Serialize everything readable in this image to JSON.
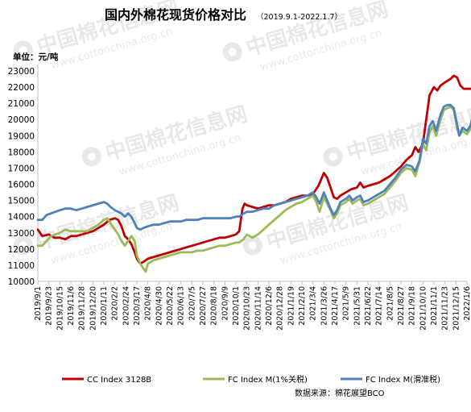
{
  "chart_data": {
    "type": "line",
    "title": "国内外棉花现货价格对比",
    "subtitle": "（2019.9.1-2022.1.7）",
    "unit_label": "单位：元/吨",
    "source": "数据来源：棉花展望BCO",
    "watermark": {
      "text": "中国棉花信息网",
      "url": "www.cottonchina.org.cn"
    },
    "ylim": [
      10000,
      23000
    ],
    "y_ticks": [
      "10000",
      "11000",
      "12000",
      "13000",
      "14000",
      "15000",
      "16000",
      "17000",
      "18000",
      "19000",
      "20000",
      "21000",
      "22000",
      "23000"
    ],
    "x_ticks": [
      "2019/9/1",
      "2019/9/23",
      "2019/10/15",
      "2019/11/6",
      "2019/11/28",
      "2019/12/20",
      "2020/1/11",
      "2020/2/2",
      "2020/2/24",
      "2020/3/17",
      "2020/4/8",
      "2020/4/30",
      "2020/5/22",
      "2020/6/13",
      "2020/7/5",
      "2020/7/27",
      "2020/8/18",
      "2020/9/9",
      "2020/10/1",
      "2020/10/23",
      "2020/11/14",
      "2020/12/6",
      "2020/12/28",
      "2021/1/19",
      "2021/2/10",
      "2021/3/4",
      "2021/3/26",
      "2021/4/17",
      "2021/5/9",
      "2021/5/31",
      "2021/6/22",
      "2021/7/14",
      "2021/8/5",
      "2021/8/27",
      "2021/9/18",
      "2021/10/10",
      "2021/11/1",
      "2021/11/23",
      "2021/12/15",
      "2022/1/6"
    ],
    "grid": false,
    "legend_position": "bottom",
    "series": [
      {
        "name": "CC Index 3128B",
        "color": "#c00000",
        "points": [
          [
            0,
            13200
          ],
          [
            0.4,
            12800
          ],
          [
            1,
            12900
          ],
          [
            1.5,
            12700
          ],
          [
            2,
            12700
          ],
          [
            2.5,
            12600
          ],
          [
            3,
            12800
          ],
          [
            3.5,
            12800
          ],
          [
            4,
            12900
          ],
          [
            4.5,
            13000
          ],
          [
            5,
            13100
          ],
          [
            5.5,
            13300
          ],
          [
            6,
            13500
          ],
          [
            6.5,
            13800
          ],
          [
            7,
            13900
          ],
          [
            7.3,
            13800
          ],
          [
            7.6,
            13400
          ],
          [
            7.9,
            12800
          ],
          [
            8.2,
            12600
          ],
          [
            8.5,
            12300
          ],
          [
            8.8,
            11800
          ],
          [
            9.0,
            11400
          ],
          [
            9.3,
            11100
          ],
          [
            9.6,
            11200
          ],
          [
            10,
            11400
          ],
          [
            10.5,
            11500
          ],
          [
            11,
            11600
          ],
          [
            11.5,
            11700
          ],
          [
            12,
            11800
          ],
          [
            12.5,
            11900
          ],
          [
            13,
            12000
          ],
          [
            13.5,
            12100
          ],
          [
            14,
            12200
          ],
          [
            14.5,
            12300
          ],
          [
            15,
            12400
          ],
          [
            15.5,
            12500
          ],
          [
            16,
            12600
          ],
          [
            16.5,
            12700
          ],
          [
            17,
            12700
          ],
          [
            17.5,
            12800
          ],
          [
            18,
            12900
          ],
          [
            18.3,
            13100
          ],
          [
            18.6,
            14500
          ],
          [
            18.8,
            14800
          ],
          [
            19,
            14700
          ],
          [
            19.5,
            14600
          ],
          [
            20,
            14500
          ],
          [
            20.5,
            14600
          ],
          [
            21,
            14700
          ],
          [
            21.5,
            14700
          ],
          [
            22,
            14800
          ],
          [
            22.5,
            14900
          ],
          [
            23,
            15100
          ],
          [
            23.5,
            15200
          ],
          [
            24,
            15300
          ],
          [
            24.5,
            15300
          ],
          [
            25,
            15400
          ],
          [
            25.5,
            15900
          ],
          [
            26,
            16700
          ],
          [
            26.3,
            16400
          ],
          [
            26.6,
            15800
          ],
          [
            26.9,
            15200
          ],
          [
            27.2,
            15100
          ],
          [
            27.5,
            15300
          ],
          [
            28,
            15500
          ],
          [
            28.5,
            15700
          ],
          [
            29,
            15800
          ],
          [
            29.3,
            16100
          ],
          [
            29.6,
            15800
          ],
          [
            30,
            15900
          ],
          [
            30.5,
            16000
          ],
          [
            31,
            16100
          ],
          [
            31.5,
            16300
          ],
          [
            32,
            16500
          ],
          [
            32.5,
            16800
          ],
          [
            33,
            17100
          ],
          [
            33.5,
            17500
          ],
          [
            34,
            17800
          ],
          [
            34.3,
            18300
          ],
          [
            34.6,
            18000
          ],
          [
            35,
            18500
          ],
          [
            35.3,
            20000
          ],
          [
            35.6,
            21500
          ],
          [
            36,
            22000
          ],
          [
            36.3,
            21800
          ],
          [
            36.6,
            22100
          ],
          [
            37,
            22300
          ],
          [
            37.5,
            22500
          ],
          [
            37.8,
            22700
          ],
          [
            38.1,
            22600
          ],
          [
            38.4,
            22100
          ],
          [
            38.7,
            21900
          ],
          [
            39,
            21900
          ],
          [
            39.4,
            21900
          ]
        ]
      },
      {
        "name": "FC Index M(1%关税)",
        "color": "#9bbb59",
        "points": [
          [
            0,
            12200
          ],
          [
            0.4,
            12200
          ],
          [
            0.8,
            12500
          ],
          [
            1.2,
            12800
          ],
          [
            1.6,
            12900
          ],
          [
            2,
            13000
          ],
          [
            2.5,
            13200
          ],
          [
            3,
            13100
          ],
          [
            3.5,
            13100
          ],
          [
            4,
            13100
          ],
          [
            4.5,
            13100
          ],
          [
            5,
            13300
          ],
          [
            5.5,
            13500
          ],
          [
            6,
            13800
          ],
          [
            6.3,
            13900
          ],
          [
            6.6,
            13600
          ],
          [
            7,
            13200
          ],
          [
            7.3,
            12900
          ],
          [
            7.6,
            12500
          ],
          [
            7.9,
            12200
          ],
          [
            8.2,
            12500
          ],
          [
            8.5,
            12800
          ],
          [
            8.8,
            12500
          ],
          [
            9.0,
            11600
          ],
          [
            9.3,
            11100
          ],
          [
            9.6,
            10800
          ],
          [
            9.8,
            10600
          ],
          [
            10,
            11100
          ],
          [
            10.5,
            11300
          ],
          [
            11,
            11400
          ],
          [
            11.5,
            11500
          ],
          [
            12,
            11600
          ],
          [
            12.5,
            11700
          ],
          [
            13,
            11800
          ],
          [
            13.5,
            11800
          ],
          [
            14,
            11800
          ],
          [
            14.5,
            11900
          ],
          [
            15,
            11900
          ],
          [
            15.5,
            12000
          ],
          [
            16,
            12100
          ],
          [
            16.5,
            12200
          ],
          [
            17,
            12200
          ],
          [
            17.5,
            12300
          ],
          [
            18,
            12400
          ],
          [
            18.3,
            12400
          ],
          [
            18.7,
            12600
          ],
          [
            19,
            12900
          ],
          [
            19.5,
            12700
          ],
          [
            20,
            12900
          ],
          [
            20.5,
            13200
          ],
          [
            21,
            13500
          ],
          [
            21.5,
            13800
          ],
          [
            22,
            14100
          ],
          [
            22.5,
            14400
          ],
          [
            23,
            14600
          ],
          [
            23.5,
            14800
          ],
          [
            24,
            14900
          ],
          [
            24.5,
            15100
          ],
          [
            25,
            15300
          ],
          [
            25.3,
            14900
          ],
          [
            25.6,
            14300
          ],
          [
            26,
            15200
          ],
          [
            26.3,
            14800
          ],
          [
            26.6,
            14400
          ],
          [
            26.9,
            13900
          ],
          [
            27.2,
            14200
          ],
          [
            27.5,
            14700
          ],
          [
            28,
            14900
          ],
          [
            28.3,
            15100
          ],
          [
            28.6,
            14800
          ],
          [
            29,
            15000
          ],
          [
            29.3,
            15100
          ],
          [
            29.6,
            14700
          ],
          [
            30,
            14800
          ],
          [
            30.5,
            15000
          ],
          [
            31,
            15200
          ],
          [
            31.5,
            15400
          ],
          [
            32,
            15800
          ],
          [
            32.5,
            16200
          ],
          [
            33,
            16700
          ],
          [
            33.5,
            17000
          ],
          [
            34,
            16900
          ],
          [
            34.3,
            16500
          ],
          [
            34.7,
            17400
          ],
          [
            35,
            18500
          ],
          [
            35.3,
            18100
          ],
          [
            35.6,
            19200
          ],
          [
            35.9,
            19600
          ],
          [
            36.2,
            19000
          ],
          [
            36.6,
            20000
          ],
          [
            36.9,
            20600
          ],
          [
            37.2,
            20700
          ],
          [
            37.5,
            20800
          ],
          [
            37.8,
            20600
          ],
          [
            38.1,
            19500
          ],
          [
            38.3,
            19000
          ],
          [
            38.6,
            19300
          ],
          [
            39,
            19100
          ],
          [
            39.3,
            19400
          ],
          [
            39.6,
            19900
          ]
        ]
      },
      {
        "name": "FC Index M(滑准税)",
        "color": "#4f81bd",
        "points": [
          [
            0,
            13800
          ],
          [
            0.4,
            13800
          ],
          [
            0.8,
            14100
          ],
          [
            1.2,
            14200
          ],
          [
            1.6,
            14300
          ],
          [
            2,
            14400
          ],
          [
            2.5,
            14500
          ],
          [
            3,
            14500
          ],
          [
            3.5,
            14400
          ],
          [
            4,
            14500
          ],
          [
            4.5,
            14600
          ],
          [
            5,
            14700
          ],
          [
            5.5,
            14800
          ],
          [
            6,
            14900
          ],
          [
            6.3,
            14800
          ],
          [
            6.6,
            14600
          ],
          [
            7,
            14400
          ],
          [
            7.3,
            14300
          ],
          [
            7.6,
            14200
          ],
          [
            7.9,
            14000
          ],
          [
            8.2,
            14200
          ],
          [
            8.5,
            14000
          ],
          [
            8.8,
            13600
          ],
          [
            9.0,
            13300
          ],
          [
            9.3,
            13200
          ],
          [
            9.6,
            13300
          ],
          [
            10,
            13400
          ],
          [
            10.5,
            13500
          ],
          [
            11,
            13500
          ],
          [
            11.5,
            13600
          ],
          [
            12,
            13700
          ],
          [
            12.5,
            13700
          ],
          [
            13,
            13700
          ],
          [
            13.5,
            13800
          ],
          [
            14,
            13800
          ],
          [
            14.5,
            13800
          ],
          [
            15,
            13900
          ],
          [
            15.5,
            13900
          ],
          [
            16,
            13900
          ],
          [
            16.5,
            13900
          ],
          [
            17,
            13900
          ],
          [
            17.5,
            13900
          ],
          [
            18,
            14000
          ],
          [
            18.3,
            14000
          ],
          [
            18.7,
            14200
          ],
          [
            19,
            14300
          ],
          [
            19.5,
            14300
          ],
          [
            20,
            14400
          ],
          [
            20.5,
            14500
          ],
          [
            21,
            14500
          ],
          [
            21.5,
            14700
          ],
          [
            22,
            14800
          ],
          [
            22.5,
            14900
          ],
          [
            23,
            15000
          ],
          [
            23.5,
            15100
          ],
          [
            24,
            15200
          ],
          [
            24.5,
            15300
          ],
          [
            25,
            15500
          ],
          [
            25.3,
            15200
          ],
          [
            25.6,
            14800
          ],
          [
            26,
            15500
          ],
          [
            26.3,
            15000
          ],
          [
            26.6,
            14500
          ],
          [
            26.9,
            14100
          ],
          [
            27.2,
            14400
          ],
          [
            27.5,
            14900
          ],
          [
            28,
            15100
          ],
          [
            28.3,
            15300
          ],
          [
            28.6,
            15000
          ],
          [
            29,
            15200
          ],
          [
            29.3,
            15300
          ],
          [
            29.6,
            14900
          ],
          [
            30,
            15000
          ],
          [
            30.5,
            15200
          ],
          [
            31,
            15400
          ],
          [
            31.5,
            15600
          ],
          [
            32,
            16000
          ],
          [
            32.5,
            16400
          ],
          [
            33,
            16900
          ],
          [
            33.5,
            17200
          ],
          [
            34,
            17100
          ],
          [
            34.3,
            16800
          ],
          [
            34.7,
            17500
          ],
          [
            35,
            18800
          ],
          [
            35.3,
            18500
          ],
          [
            35.6,
            19600
          ],
          [
            35.9,
            19900
          ],
          [
            36.2,
            19300
          ],
          [
            36.6,
            20300
          ],
          [
            36.9,
            20800
          ],
          [
            37.2,
            20900
          ],
          [
            37.5,
            20900
          ],
          [
            37.8,
            20700
          ],
          [
            38.1,
            19700
          ],
          [
            38.3,
            19000
          ],
          [
            38.6,
            19500
          ],
          [
            39,
            19300
          ],
          [
            39.3,
            19600
          ],
          [
            39.6,
            20400
          ]
        ]
      }
    ]
  }
}
